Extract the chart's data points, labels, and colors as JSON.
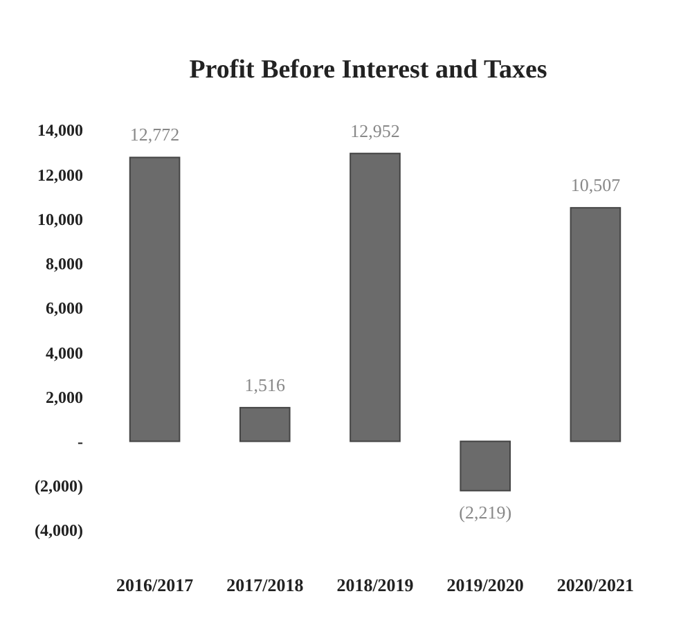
{
  "chart_data": {
    "type": "bar",
    "title": "Profit Before Interest and Taxes",
    "categories": [
      "2016/2017",
      "2017/2018",
      "2018/2019",
      "2019/2020",
      "2020/2021"
    ],
    "values": [
      12772,
      1516,
      12952,
      -2219,
      10507
    ],
    "color": "#6b6b6b",
    "value_labels": [
      "12,772",
      "1,516",
      "12,952",
      "(2,219)",
      "10,507"
    ],
    "ylim": [
      -4000,
      14000
    ],
    "yticks": [
      {
        "value": -4000,
        "label": "(4,000)"
      },
      {
        "value": -2000,
        "label": "(2,000)"
      },
      {
        "value": 0,
        "label": "-"
      },
      {
        "value": 2000,
        "label": "2,000"
      },
      {
        "value": 4000,
        "label": "4,000"
      },
      {
        "value": 6000,
        "label": "6,000"
      },
      {
        "value": 8000,
        "label": "8,000"
      },
      {
        "value": 10000,
        "label": "10,000"
      },
      {
        "value": 12000,
        "label": "12,000"
      },
      {
        "value": 14000,
        "label": "14,000"
      }
    ]
  }
}
